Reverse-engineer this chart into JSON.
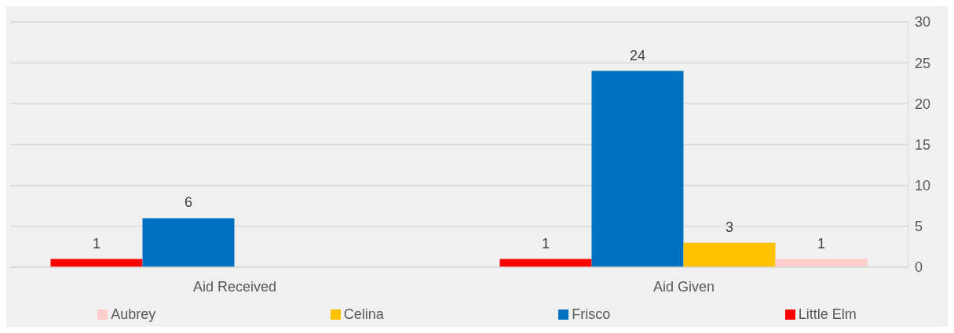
{
  "chart_data": {
    "type": "bar",
    "categories": [
      "Aid Received",
      "Aid Given"
    ],
    "series": [
      {
        "name": "Little Elm",
        "color": "#ff0000",
        "values": [
          1,
          1
        ]
      },
      {
        "name": "Frisco",
        "color": "#0070c0",
        "values": [
          6,
          24
        ]
      },
      {
        "name": "Celina",
        "color": "#ffc000",
        "values": [
          null,
          3
        ]
      },
      {
        "name": "Aubrey",
        "color": "#ffcccc",
        "values": [
          null,
          1
        ]
      }
    ],
    "ylim": [
      0,
      30
    ],
    "yticks": [
      0,
      5,
      10,
      15,
      20,
      25,
      30
    ],
    "grid": "y",
    "legend": "bottom",
    "data_labels": true
  }
}
